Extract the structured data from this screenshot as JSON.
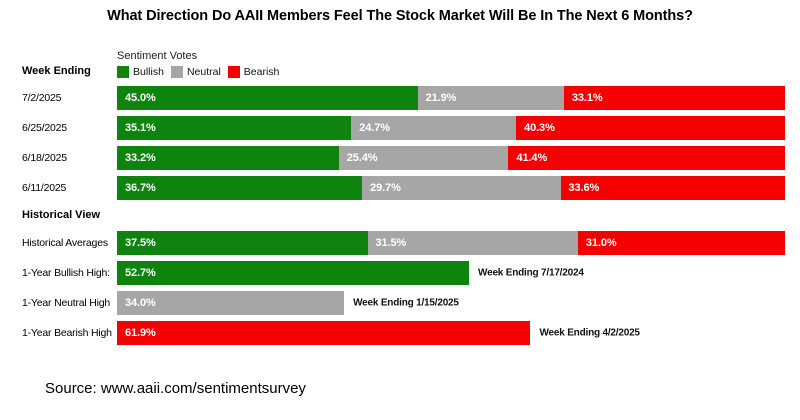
{
  "title": "What Direction Do AAII Members Feel The Stock Market Will Be In The Next 6 Months?",
  "legend": {
    "title": "Sentiment Votes",
    "items": [
      {
        "label": "Bullish",
        "color": "#0e830e"
      },
      {
        "label": "Neutral",
        "color": "#a6a6a6"
      },
      {
        "label": "Bearish",
        "color": "#f50000"
      }
    ]
  },
  "headers": {
    "weekly": "Week Ending",
    "historical": "Historical View"
  },
  "source": "Source: www.aaii.com/sentimentsurvey",
  "colors": {
    "bullish": "#0e830e",
    "neutral": "#a6a6a6",
    "bearish": "#f50000"
  },
  "chart_data": {
    "type": "bar",
    "orientation": "horizontal",
    "stacked": true,
    "x_max": 100,
    "series_names": [
      "Bullish",
      "Neutral",
      "Bearish"
    ],
    "weekly_rows": [
      {
        "label": "7/2/2025",
        "values": [
          45.0,
          21.9,
          33.1
        ]
      },
      {
        "label": "6/25/2025",
        "values": [
          35.1,
          24.7,
          40.3
        ]
      },
      {
        "label": "6/18/2025",
        "values": [
          33.2,
          25.4,
          41.4
        ]
      },
      {
        "label": "6/11/2025",
        "values": [
          36.7,
          29.7,
          33.6
        ]
      }
    ],
    "historical_rows": [
      {
        "label": "Historical Averages",
        "values": [
          37.5,
          31.5,
          31.0
        ]
      },
      {
        "label": "1-Year Bullish High:",
        "series": "Bullish",
        "value": 52.7,
        "annotation": "Week Ending 7/17/2024"
      },
      {
        "label": "1-Year Neutral High",
        "series": "Neutral",
        "value": 34.0,
        "annotation": "Week Ending 1/15/2025"
      },
      {
        "label": "1-Year Bearish High",
        "series": "Bearish",
        "value": 61.9,
        "annotation": "Week Ending 4/2/2025"
      }
    ]
  }
}
